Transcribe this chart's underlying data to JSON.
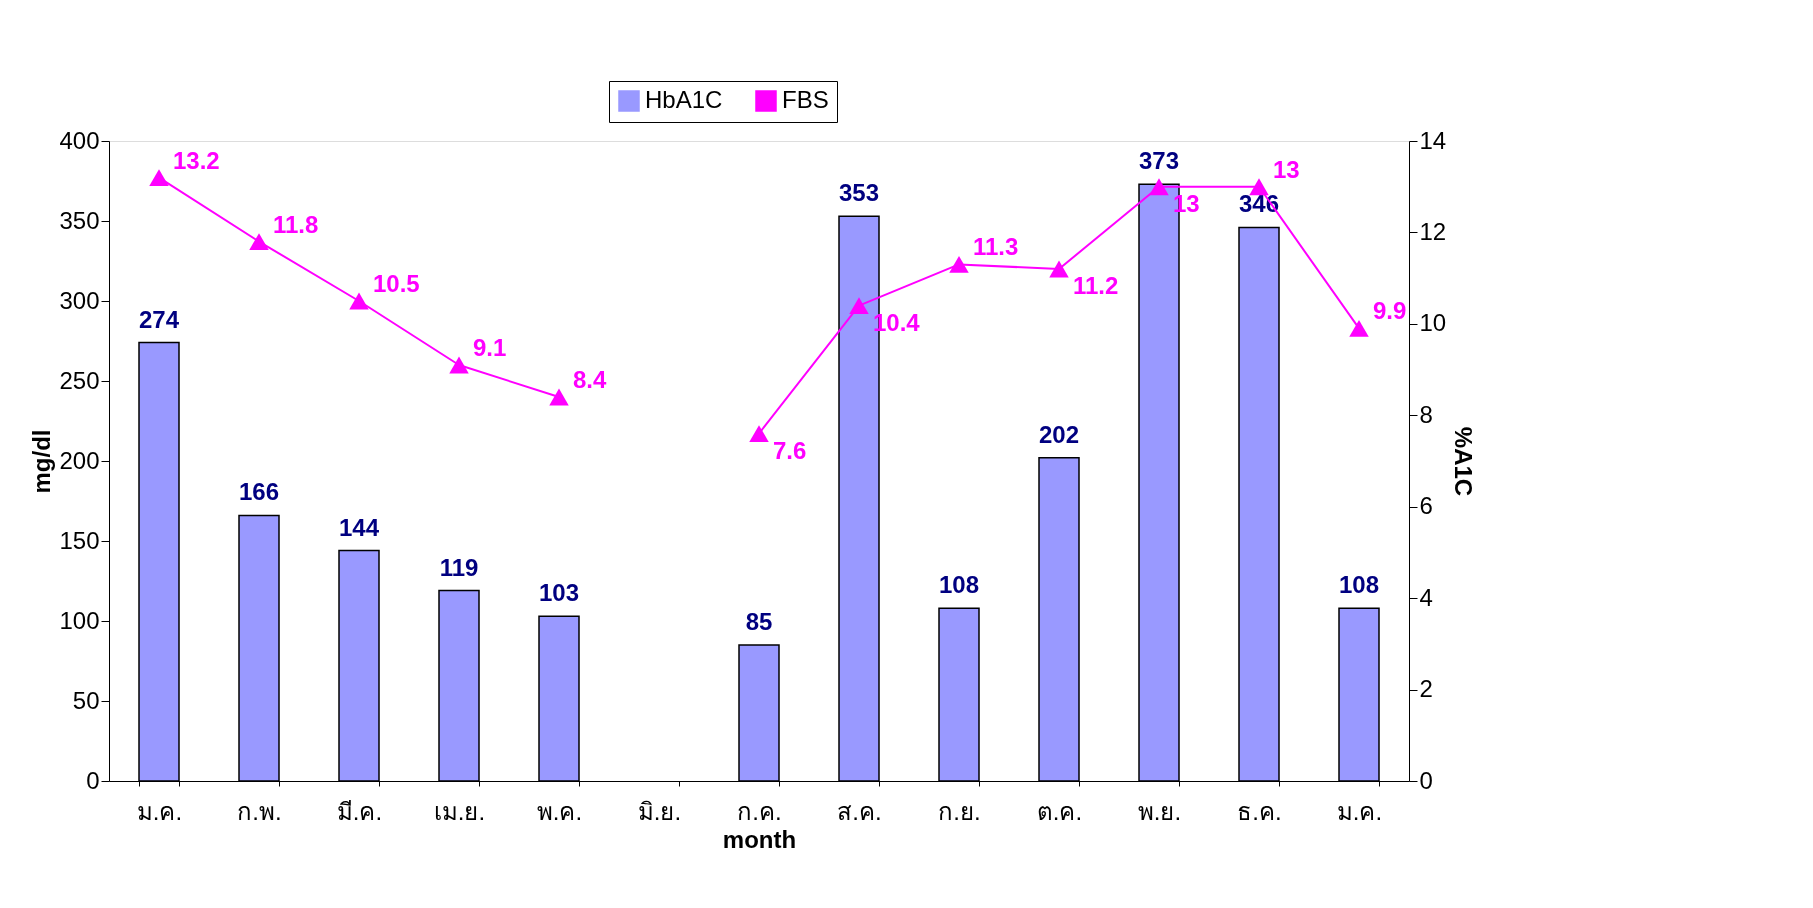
{
  "chart_data": {
    "type": "bar",
    "xlabel": "month",
    "ylabel": "mg/dl",
    "y2label": "%A1C",
    "categories": [
      "ม.ค.",
      "ก.พ.",
      "มี.ค.",
      "เม.ย.",
      "พ.ค.",
      "มิ.ย.",
      "ก.ค.",
      "ส.ค.",
      "ก.ย.",
      "ต.ค.",
      "พ.ย.",
      "ธ.ค.",
      "ม.ค."
    ],
    "series": [
      {
        "name": "HbA1C",
        "color": "#9999ff",
        "values": [
          274,
          166,
          144,
          119,
          103,
          null,
          85,
          353,
          108,
          202,
          373,
          346,
          108
        ]
      },
      {
        "name": "FBS",
        "type": "line",
        "axis": "y2",
        "color": "#ff00ff",
        "marker": "triangle",
        "values": [
          13.2,
          11.8,
          10.5,
          9.1,
          8.4,
          null,
          7.6,
          10.4,
          11.3,
          11.2,
          13,
          13,
          9.9
        ]
      }
    ],
    "ylim": [
      0,
      400
    ],
    "yticks": [
      0,
      50,
      100,
      150,
      200,
      250,
      300,
      350,
      400
    ],
    "y2lim": [
      0,
      14
    ],
    "y2ticks": [
      0,
      2,
      4,
      6,
      8,
      10,
      12,
      14
    ],
    "data_labels": true,
    "grid": false,
    "legend": "top"
  }
}
